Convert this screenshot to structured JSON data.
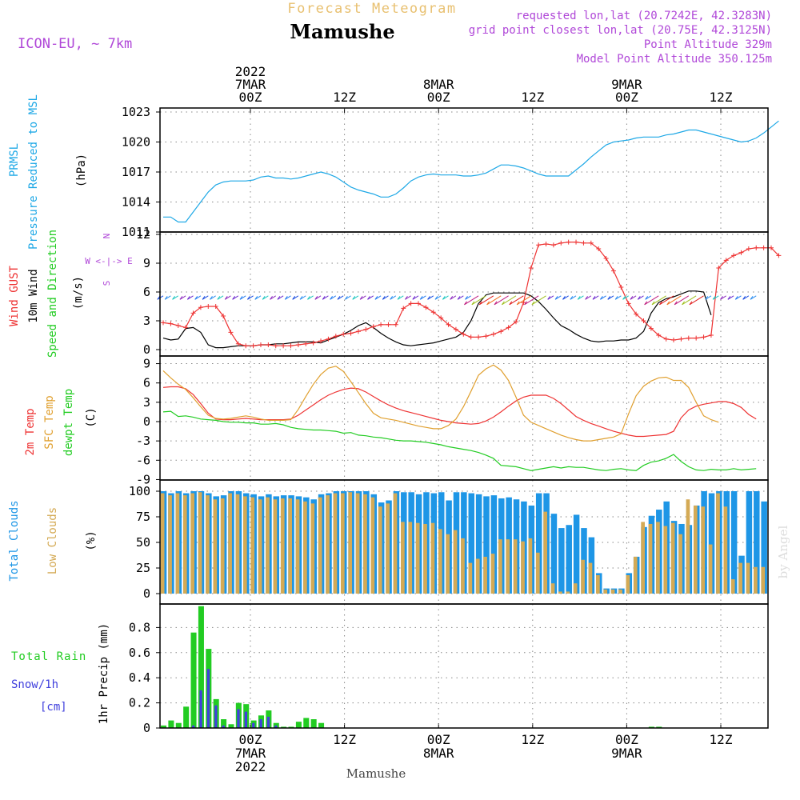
{
  "header": {
    "title_top": "Forecast Meteogram",
    "place": "Mamushe",
    "model": "ICON-EU, ~ 7km",
    "info": [
      "requested lon,lat (20.7242E, 42.3283N)",
      "grid point closest lon,lat (20.75E, 42.3125N)",
      "Point Altitude 329m",
      "Model Point Altitude 350.125m"
    ],
    "credit": "by Angel",
    "bottom_label": "Mamushe"
  },
  "time_axis": {
    "top": [
      {
        "hour": 0,
        "lines": [
          "2022",
          "7MAR",
          "00Z"
        ]
      },
      {
        "hour": 12,
        "lines": [
          "12Z"
        ]
      },
      {
        "hour": 24,
        "lines": [
          "8MAR",
          "00Z"
        ]
      },
      {
        "hour": 36,
        "lines": [
          "12Z"
        ]
      },
      {
        "hour": 48,
        "lines": [
          "9MAR",
          "00Z"
        ]
      },
      {
        "hour": 60,
        "lines": [
          "12Z"
        ]
      }
    ],
    "bottom": [
      {
        "hour": 0,
        "lines": [
          "00Z",
          "7MAR",
          "2022"
        ]
      },
      {
        "hour": 12,
        "lines": [
          "12Z"
        ]
      },
      {
        "hour": 24,
        "lines": [
          "00Z",
          "8MAR"
        ]
      },
      {
        "hour": 36,
        "lines": [
          "12Z"
        ]
      },
      {
        "hour": 48,
        "lines": [
          "00Z",
          "9MAR"
        ]
      },
      {
        "hour": 60,
        "lines": [
          "12Z"
        ]
      }
    ]
  },
  "panels": {
    "pressure": {
      "labels": [
        "PRMSL",
        "Pressure Reduced to MSL",
        "(hPa)"
      ],
      "ticks": [
        "1023",
        "1020",
        "1017",
        "1014",
        "1011"
      ]
    },
    "wind": {
      "labels": [
        "Wind GUST",
        "10m Wind",
        "Speed and Direction",
        "(m/s)"
      ],
      "ticks": [
        "12",
        "9",
        "6",
        "3",
        "0"
      ],
      "compass": [
        "N",
        "W <-|-> E",
        "S"
      ]
    },
    "temp": {
      "labels": [
        "2m Temp",
        "SFC Temp",
        "dewpt Temp",
        "(C)"
      ],
      "ticks": [
        "9",
        "6",
        "3",
        "0",
        "-3",
        "-6",
        "-9"
      ]
    },
    "clouds": {
      "labels": [
        "Total Clouds",
        "Low Clouds",
        "(%)"
      ],
      "ticks": [
        "100",
        "75",
        "50",
        "25",
        "0"
      ]
    },
    "precip": {
      "labels": [
        "Total Rain",
        "Snow/1h",
        "[cm]",
        "1hr Precip (mm)"
      ],
      "ticks": [
        "0.8",
        "0.6",
        "0.4",
        "0.2",
        "0"
      ]
    }
  },
  "colors": {
    "pressure": "#1ea8e6",
    "gust": "#ee3333",
    "wind10m": "#000000",
    "temp2m": "#ee3333",
    "sfc": "#e0a030",
    "dewpt": "#22cc22",
    "total_cloud": "#1e96e6",
    "low_cloud": "#d4aa55",
    "rain": "#22cc22",
    "snow": "#4040dd",
    "info": "#b048d8",
    "title_top": "#e8c070"
  },
  "chart_data": [
    {
      "type": "line",
      "title": "PRMSL Pressure Reduced to MSL",
      "ylabel": "(hPa)",
      "ylim": [
        1011,
        1023
      ],
      "x_hours_start": -9,
      "x_step_hours": 1,
      "series": [
        {
          "name": "PRMSL",
          "values": [
            1012.5,
            1012.5,
            1012.0,
            1012.0,
            1013.0,
            1014.0,
            1015.0,
            1015.7,
            1016.0,
            1016.1,
            1016.1,
            1016.1,
            1016.2,
            1016.5,
            1016.6,
            1016.4,
            1016.4,
            1016.3,
            1016.4,
            1016.6,
            1016.8,
            1017.0,
            1016.8,
            1016.5,
            1016.0,
            1015.5,
            1015.2,
            1015.0,
            1014.8,
            1014.5,
            1014.5,
            1014.8,
            1015.4,
            1016.1,
            1016.5,
            1016.7,
            1016.8,
            1016.7,
            1016.7,
            1016.7,
            1016.6,
            1016.6,
            1016.7,
            1016.9,
            1017.3,
            1017.7,
            1017.7,
            1017.6,
            1017.4,
            1017.1,
            1016.8,
            1016.6,
            1016.6,
            1016.6,
            1016.6,
            1017.2,
            1017.8,
            1018.5,
            1019.1,
            1019.7,
            1020.0,
            1020.1,
            1020.2,
            1020.4,
            1020.5,
            1020.5,
            1020.5,
            1020.7,
            1020.8,
            1021.0,
            1021.2,
            1021.2,
            1021.0,
            1020.8,
            1020.6,
            1020.4,
            1020.2,
            1020.0,
            1020.1,
            1020.4,
            1020.9,
            1021.5,
            1022.1
          ]
        }
      ]
    },
    {
      "type": "line",
      "title": "Wind GUST / 10m Wind Speed and Direction",
      "ylabel": "(m/s)",
      "ylim": [
        0,
        12
      ],
      "x_hours_start": -9,
      "x_step_hours": 1,
      "series": [
        {
          "name": "Wind GUST",
          "values": [
            2.8,
            2.7,
            2.5,
            2.3,
            3.8,
            4.4,
            4.5,
            4.5,
            3.5,
            1.8,
            0.6,
            0.4,
            0.4,
            0.5,
            0.5,
            0.4,
            0.4,
            0.4,
            0.5,
            0.6,
            0.7,
            0.9,
            1.1,
            1.4,
            1.6,
            1.7,
            1.9,
            2.1,
            2.4,
            2.6,
            2.6,
            2.6,
            4.3,
            4.8,
            4.8,
            4.4,
            3.9,
            3.3,
            2.6,
            2.1,
            1.6,
            1.3,
            1.3,
            1.4,
            1.6,
            1.9,
            2.3,
            2.9,
            4.9,
            8.5,
            10.9,
            11.0,
            10.9,
            11.1,
            11.2,
            11.2,
            11.1,
            11.1,
            10.5,
            9.5,
            8.2,
            6.5,
            4.8,
            3.7,
            3.0,
            2.2,
            1.5,
            1.1,
            1.0,
            1.1,
            1.2,
            1.2,
            1.3,
            1.5,
            8.5,
            9.3,
            9.8,
            10.1,
            10.5,
            10.6,
            10.6,
            10.6,
            9.8
          ]
        },
        {
          "name": "10m Wind",
          "values": [
            1.2,
            1.0,
            1.1,
            2.2,
            2.3,
            1.8,
            0.5,
            0.2,
            0.2,
            0.3,
            0.4,
            0.4,
            0.4,
            0.5,
            0.5,
            0.6,
            0.6,
            0.7,
            0.8,
            0.8,
            0.8,
            0.7,
            1.0,
            1.3,
            1.6,
            2.0,
            2.5,
            2.8,
            2.3,
            1.7,
            1.2,
            0.8,
            0.5,
            0.4,
            0.5,
            0.6,
            0.7,
            0.9,
            1.1,
            1.3,
            1.8,
            3.0,
            4.8,
            5.7,
            5.9,
            5.9,
            5.9,
            5.9,
            5.9,
            5.6,
            5.0,
            4.2,
            3.3,
            2.5,
            2.1,
            1.6,
            1.2,
            0.9,
            0.8,
            0.9,
            0.9,
            1.0,
            1.0,
            1.2,
            1.9,
            3.8,
            4.9,
            5.3,
            5.5,
            5.8,
            6.1,
            6.1,
            6.0,
            3.6
          ]
        }
      ]
    },
    {
      "type": "line",
      "title": "2m Temp / SFC Temp / dewpt Temp",
      "ylabel": "(C)",
      "ylim": [
        -9,
        9
      ],
      "x_hours_start": -9,
      "x_step_hours": 1,
      "series": [
        {
          "name": "2m Temp",
          "values": [
            5.3,
            5.4,
            5.4,
            5.1,
            4.2,
            2.8,
            1.3,
            0.4,
            0.3,
            0.3,
            0.4,
            0.5,
            0.4,
            0.3,
            0.3,
            0.3,
            0.3,
            0.4,
            1.0,
            1.8,
            2.6,
            3.4,
            4.1,
            4.6,
            5.0,
            5.2,
            5.1,
            4.6,
            3.9,
            3.2,
            2.6,
            2.1,
            1.7,
            1.4,
            1.1,
            0.8,
            0.5,
            0.2,
            0.0,
            -0.2,
            -0.3,
            -0.4,
            -0.3,
            0.1,
            0.7,
            1.5,
            2.4,
            3.2,
            3.8,
            4.1,
            4.1,
            4.1,
            3.6,
            2.8,
            1.8,
            0.8,
            0.2,
            -0.3,
            -0.7,
            -1.1,
            -1.5,
            -1.8,
            -2.1,
            -2.3,
            -2.3,
            -2.2,
            -2.1,
            -2.0,
            -1.5,
            0.6,
            1.8,
            2.4,
            2.7,
            2.9,
            3.1,
            3.1,
            2.8,
            2.2,
            1.1,
            0.4
          ]
        },
        {
          "name": "SFC Temp",
          "values": [
            7.9,
            6.8,
            5.8,
            5.0,
            3.7,
            2.3,
            1.0,
            0.5,
            0.4,
            0.5,
            0.7,
            0.9,
            0.7,
            0.4,
            0.2,
            0.2,
            0.2,
            0.3,
            1.9,
            3.9,
            5.8,
            7.3,
            8.3,
            8.6,
            7.8,
            6.2,
            4.5,
            2.8,
            1.3,
            0.6,
            0.4,
            0.2,
            -0.1,
            -0.4,
            -0.7,
            -0.9,
            -1.1,
            -1.1,
            -0.6,
            0.4,
            2.3,
            4.7,
            7.2,
            8.2,
            8.8,
            8.0,
            6.4,
            3.8,
            1.0,
            -0.1,
            -0.6,
            -1.1,
            -1.6,
            -2.1,
            -2.5,
            -2.8,
            -3.0,
            -3.0,
            -2.8,
            -2.6,
            -2.4,
            -1.9,
            1.2,
            4.0,
            5.5,
            6.3,
            6.8,
            6.9,
            6.4,
            6.4,
            5.3,
            3.0,
            0.9,
            0.3,
            -0.1
          ]
        },
        {
          "name": "dewpt Temp",
          "values": [
            1.5,
            1.6,
            0.8,
            0.9,
            0.7,
            0.4,
            0.3,
            0.2,
            0.0,
            -0.1,
            -0.1,
            -0.2,
            -0.2,
            -0.4,
            -0.4,
            -0.3,
            -0.5,
            -0.9,
            -1.1,
            -1.2,
            -1.3,
            -1.3,
            -1.4,
            -1.5,
            -1.8,
            -1.7,
            -2.1,
            -2.2,
            -2.4,
            -2.5,
            -2.7,
            -2.9,
            -3.0,
            -3.0,
            -3.1,
            -3.2,
            -3.4,
            -3.6,
            -3.9,
            -4.1,
            -4.3,
            -4.5,
            -4.8,
            -5.2,
            -5.7,
            -6.8,
            -6.9,
            -7.0,
            -7.3,
            -7.6,
            -7.4,
            -7.2,
            -7.0,
            -7.2,
            -7.0,
            -7.1,
            -7.1,
            -7.3,
            -7.5,
            -7.6,
            -7.4,
            -7.3,
            -7.5,
            -7.6,
            -6.8,
            -6.3,
            -6.1,
            -5.7,
            -5.1,
            -6.2,
            -7.0,
            -7.5,
            -7.6,
            -7.4,
            -7.5,
            -7.5,
            -7.3,
            -7.5,
            -7.4,
            -7.3
          ]
        }
      ]
    },
    {
      "type": "bar",
      "title": "Total Clouds / Low Clouds",
      "ylabel": "(%)",
      "ylim": [
        0,
        100
      ],
      "x_hours_start": -9,
      "x_step_hours": 1,
      "series": [
        {
          "name": "Total Clouds",
          "values": [
            100,
            98,
            100,
            98,
            100,
            100,
            98,
            95,
            96,
            100,
            100,
            98,
            97,
            95,
            97,
            95,
            96,
            96,
            95,
            94,
            92,
            97,
            98,
            100,
            100,
            100,
            100,
            100,
            97,
            89,
            91,
            100,
            99,
            99,
            97,
            99,
            98,
            99,
            91,
            99,
            99,
            98,
            97,
            95,
            96,
            93,
            94,
            92,
            90,
            86,
            98,
            98,
            78,
            64,
            67,
            77,
            64,
            55,
            20,
            5,
            5,
            5,
            20,
            36,
            65,
            76,
            82,
            90,
            71,
            68,
            67,
            86,
            100,
            98,
            100,
            100,
            100,
            37,
            100,
            100,
            90
          ]
        },
        {
          "name": "Low Clouds",
          "values": [
            98,
            96,
            98,
            96,
            98,
            99,
            96,
            92,
            93,
            98,
            97,
            95,
            94,
            92,
            94,
            92,
            93,
            93,
            92,
            90,
            88,
            94,
            96,
            98,
            98,
            99,
            98,
            97,
            94,
            85,
            88,
            98,
            70,
            70,
            69,
            68,
            69,
            63,
            58,
            62,
            54,
            30,
            34,
            36,
            39,
            53,
            53,
            53,
            51,
            54,
            40,
            80,
            10,
            2,
            2,
            10,
            33,
            30,
            18,
            4,
            4,
            4,
            18,
            36,
            70,
            68,
            70,
            66,
            69,
            58,
            92,
            86,
            85,
            48,
            98,
            85,
            14,
            30,
            30,
            26,
            26
          ]
        }
      ]
    },
    {
      "type": "bar",
      "title": "Total Rain / Snow/1h",
      "ylabel": "1hr Precip (mm)",
      "ylim": [
        0,
        1
      ],
      "x_hours_start": -9,
      "x_step_hours": 1,
      "series": [
        {
          "name": "Total Rain",
          "values": [
            0.02,
            0.06,
            0.04,
            0.17,
            0.76,
            0.97,
            0.63,
            0.23,
            0.07,
            0.03,
            0.2,
            0.19,
            0.06,
            0.1,
            0.14,
            0.04,
            0.01,
            0.01,
            0.05,
            0.08,
            0.07,
            0.04,
            0,
            0,
            0,
            0,
            0,
            0,
            0,
            0,
            0,
            0,
            0,
            0,
            0,
            0,
            0,
            0,
            0,
            0,
            0,
            0,
            0,
            0,
            0,
            0,
            0,
            0,
            0,
            0,
            0,
            0,
            0,
            0,
            0,
            0,
            0,
            0,
            0,
            0,
            0,
            0,
            0,
            0,
            0,
            0.01,
            0.01,
            0,
            0,
            0,
            0,
            0,
            0,
            0,
            0,
            0,
            0,
            0,
            0,
            0,
            0,
            0,
            0
          ]
        },
        {
          "name": "Snow/1h",
          "values": [
            0,
            0,
            0,
            0,
            0.02,
            0.3,
            0.47,
            0.18,
            0.02,
            0,
            0.15,
            0.13,
            0.04,
            0.07,
            0.09,
            0.02,
            0,
            0,
            0,
            0,
            0,
            0,
            0,
            0,
            0,
            0,
            0,
            0,
            0,
            0,
            0,
            0,
            0,
            0,
            0,
            0,
            0,
            0,
            0,
            0,
            0,
            0,
            0,
            0,
            0,
            0,
            0,
            0,
            0,
            0,
            0,
            0,
            0,
            0,
            0,
            0,
            0,
            0,
            0,
            0,
            0,
            0,
            0,
            0,
            0,
            0,
            0,
            0,
            0,
            0,
            0,
            0,
            0,
            0,
            0,
            0,
            0,
            0,
            0,
            0,
            0
          ]
        }
      ]
    }
  ]
}
